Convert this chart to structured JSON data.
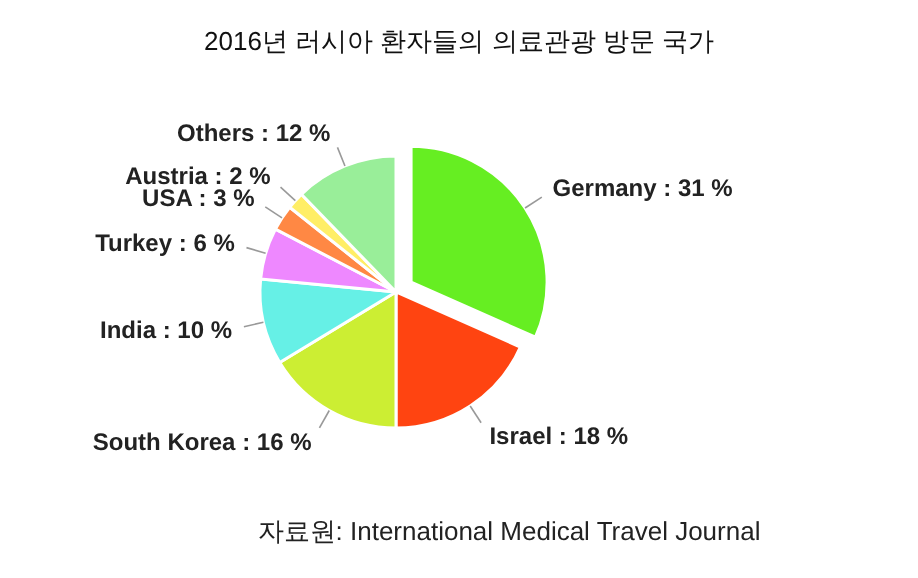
{
  "chart_data": {
    "type": "pie",
    "title": "2016년 러시아 환자들의 의료관광 방문 국가",
    "categories": [
      "Germany : 31 %",
      "Israel : 18 %",
      "South Korea : 16 %",
      "India : 10 %",
      "Turkey : 6 %",
      "USA : 3 %",
      "Austria : 2 %",
      "Others : 12 %"
    ],
    "values": [
      31,
      18,
      16,
      10,
      6,
      3,
      2,
      12
    ],
    "colors": [
      "#66ee22",
      "#ff4411",
      "#ccee33",
      "#66f0e6",
      "#ee88ff",
      "#ff8844",
      "#ffee66",
      "#99ee99"
    ],
    "annotations": [
      "자료원: International Medical Travel Journal"
    ]
  }
}
